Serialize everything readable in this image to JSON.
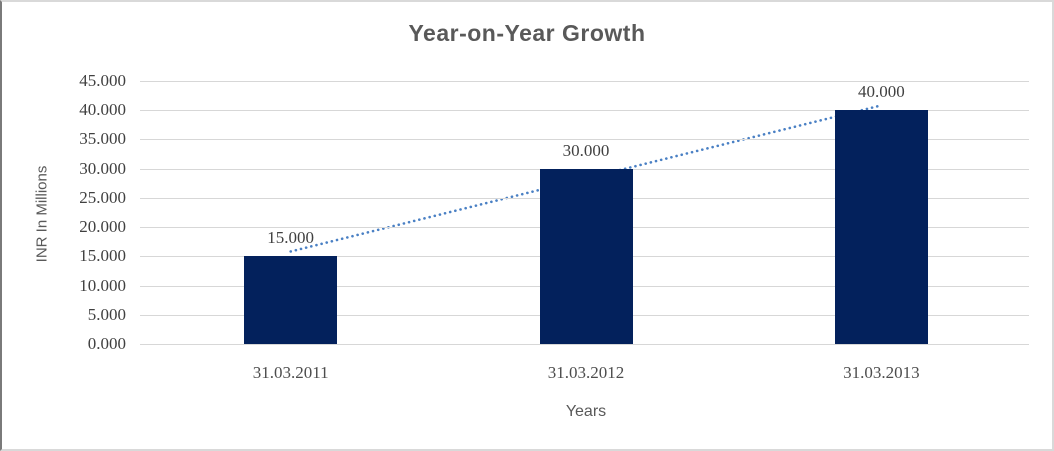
{
  "chart_data": {
    "type": "bar",
    "title": "Year-on-Year Growth",
    "xlabel": "Years",
    "ylabel": "INR In Millions",
    "categories": [
      "31.03.2011",
      "31.03.2012",
      "31.03.2013"
    ],
    "values": [
      15,
      30,
      40
    ],
    "value_labels": [
      "15.000",
      "30.000",
      "40.000"
    ],
    "ylim": [
      0,
      45
    ],
    "y_tick_step": 5,
    "y_tick_labels": [
      "0.000",
      "5.000",
      "10.000",
      "15.000",
      "20.000",
      "25.000",
      "30.000",
      "35.000",
      "40.000",
      "45.000"
    ],
    "grid": true,
    "legend": false,
    "trendline": {
      "type": "linear",
      "style": "dotted",
      "start_value": 15.83,
      "end_value": 40.83,
      "color": "#4a80c4"
    },
    "colors": {
      "bar": "#03215c",
      "gridline": "#d7d7d7",
      "title_text": "#595959",
      "tick_text": "#404040"
    }
  }
}
